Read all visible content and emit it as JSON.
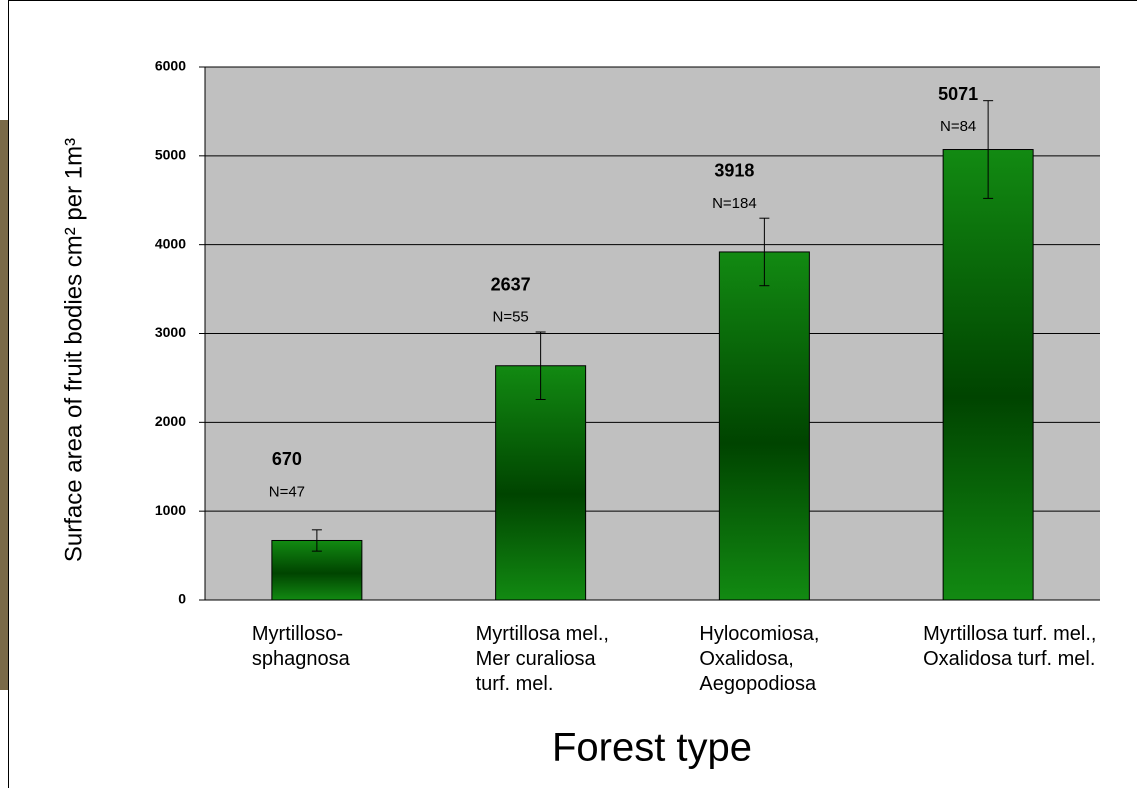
{
  "chart_data": {
    "type": "bar",
    "y_label": "Surface area of fruit bodies cm² per 1m³",
    "x_label": "Forest type",
    "categories": [
      "Myrtilloso-\nsphagnosa",
      "Myrtillosa mel.,\nMer curaliosa\nturf. mel.",
      "Hylocomiosa,\nOxalidosa,\nAegopodiosa",
      "Myrtillosa turf. mel.,\nOxalidosa turf. mel."
    ],
    "values": [
      670,
      2637,
      3918,
      5071
    ],
    "errors": [
      120,
      380,
      380,
      550
    ],
    "n_labels": [
      "N=47",
      "N=55",
      "N=184",
      "N=84"
    ],
    "color": "#0a7a0a",
    "ylim": [
      0,
      6000
    ],
    "yticks": [
      0,
      1000,
      2000,
      3000,
      4000,
      5000,
      6000
    ],
    "grid": true
  }
}
